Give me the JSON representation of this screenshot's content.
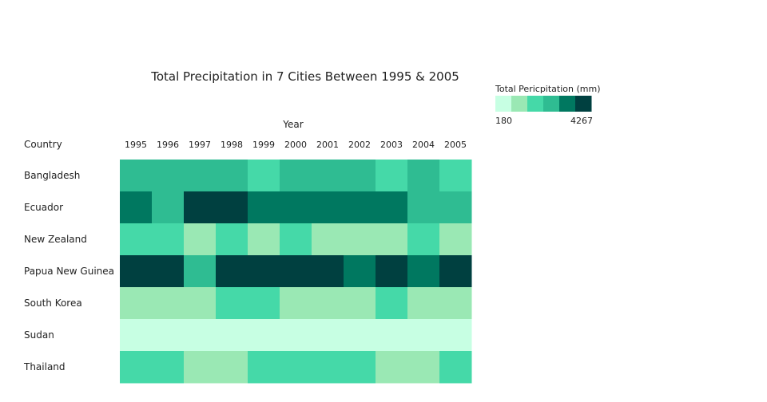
{
  "chart_data": {
    "type": "heatmap",
    "title": "Total Precipitation in 7 Cities Between 1995 & 2005",
    "xlabel": "Year",
    "ylabel": "Country",
    "x": [
      "1995",
      "1996",
      "1997",
      "1998",
      "1999",
      "2000",
      "2001",
      "2002",
      "2003",
      "2004",
      "2005"
    ],
    "y": [
      "Bangladesh",
      "Ecuador",
      "New Zealand",
      "Papua New Guinea",
      "South Korea",
      "Sudan",
      "Thailand"
    ],
    "bins": [
      [
        3,
        3,
        3,
        3,
        2,
        3,
        3,
        3,
        2,
        3,
        2
      ],
      [
        4,
        3,
        5,
        5,
        4,
        4,
        4,
        4,
        4,
        3,
        3
      ],
      [
        2,
        2,
        1,
        2,
        1,
        2,
        1,
        1,
        1,
        2,
        1
      ],
      [
        5,
        5,
        3,
        5,
        5,
        5,
        5,
        4,
        5,
        4,
        5
      ],
      [
        1,
        1,
        1,
        2,
        2,
        1,
        1,
        1,
        2,
        1,
        1
      ],
      [
        0,
        0,
        0,
        0,
        0,
        0,
        0,
        0,
        0,
        0,
        0
      ],
      [
        2,
        2,
        1,
        1,
        2,
        2,
        2,
        2,
        1,
        1,
        2
      ]
    ],
    "legend": {
      "title": "Total Pericpitation (mm)",
      "min_label": "180",
      "max_label": "4267",
      "colors": [
        "#c7ffe3",
        "#9ae8b4",
        "#45d9a8",
        "#2fbc92",
        "#007860",
        "#004040"
      ],
      "placement": "top-right"
    }
  }
}
